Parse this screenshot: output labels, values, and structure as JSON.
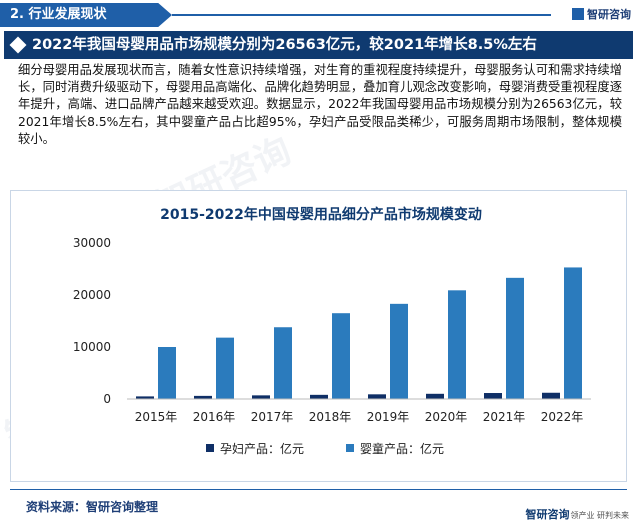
{
  "header": {
    "section_label": "2. 行业发展现状",
    "brand": "智研咨询"
  },
  "headline": "2022年我国母婴用品市场规模分别为26563亿元，较2021年增长8.5%左右",
  "body_text": "细分母婴用品发展现状而言，随着女性意识持续增强，对生育的重视程度持续提升，母婴服务认可和需求持续增长，同时消费升级驱动下，母婴用品高端化、品牌化趋势明显，叠加育儿观念改变影响，母婴消费受重视程度逐年提升，高端、进口品牌产品越来越受欢迎。数据显示，2022年我国母婴用品市场规模分别为26563亿元，较2021年增长8.5%左右，其中婴童产品占比超95%，孕妇产品受限品类稀少，可服务周期市场限制，整体规模较小。",
  "chart_data": {
    "type": "bar",
    "title": "2015-2022年中国母婴用品细分产品市场规模变动",
    "categories": [
      "2015年",
      "2016年",
      "2017年",
      "2018年",
      "2019年",
      "2020年",
      "2021年",
      "2022年"
    ],
    "series": [
      {
        "name": "孕妇产品：亿元",
        "color": "#0f2f66",
        "values": [
          500,
          600,
          700,
          800,
          900,
          1000,
          1150,
          1200
        ]
      },
      {
        "name": "婴童产品：亿元",
        "color": "#2b7bbd",
        "values": [
          10000,
          11800,
          13800,
          16500,
          18300,
          20900,
          23300,
          25300
        ]
      }
    ],
    "ylim": [
      0,
      30000
    ],
    "yticks": [
      "0",
      "10000",
      "20000",
      "30000"
    ],
    "legend_position": "bottom",
    "grid": false
  },
  "footer": {
    "source": "资料来源：智研咨询整理",
    "brand_main": "智研咨询",
    "brand_small": "领产业  研判未来"
  },
  "watermark": "智研咨询"
}
